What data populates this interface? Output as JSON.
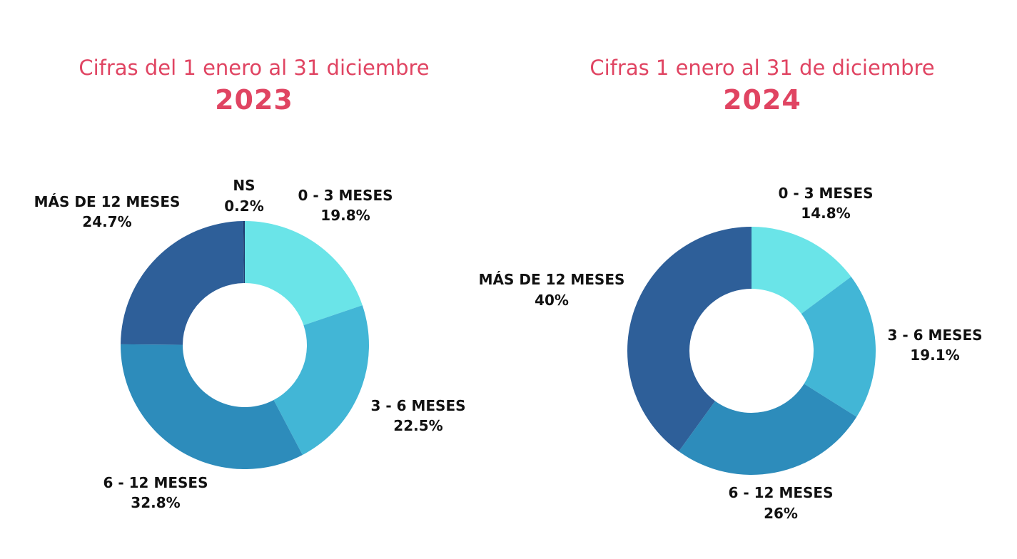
{
  "chart_data": [
    {
      "type": "pie",
      "subtitle": "Cifras del 1 enero al 31 diciembre",
      "title": "2023",
      "hole": 0.5,
      "categories": [
        "0 - 3 MESES",
        "3 - 6 MESES",
        "6 - 12 MESES",
        "MÁS DE 12 MESES",
        "NS"
      ],
      "values": [
        19.8,
        22.5,
        32.8,
        24.7,
        0.2
      ],
      "value_labels": [
        "19.8%",
        "22.5%",
        "32.8%",
        "24.7%",
        "0.2%"
      ],
      "colors": [
        "#6ae4e8",
        "#42b6d6",
        "#2d8cbb",
        "#2e5f99",
        "#1e3a6e"
      ],
      "start": "12 o'clock, clockwise"
    },
    {
      "type": "pie",
      "subtitle": "Cifras 1 enero al 31 de diciembre",
      "title": "2024",
      "hole": 0.5,
      "categories": [
        "0 - 3 MESES",
        "3 - 6 MESES",
        "6 - 12 MESES",
        "MÁS DE 12 MESES"
      ],
      "values": [
        14.8,
        19.1,
        26,
        40
      ],
      "value_labels": [
        "14.8%",
        "19.1%",
        "26%",
        "40%"
      ],
      "colors": [
        "#6ae4e8",
        "#42b6d6",
        "#2d8cbb",
        "#2e5f99"
      ],
      "start": "12 o'clock, clockwise"
    }
  ]
}
